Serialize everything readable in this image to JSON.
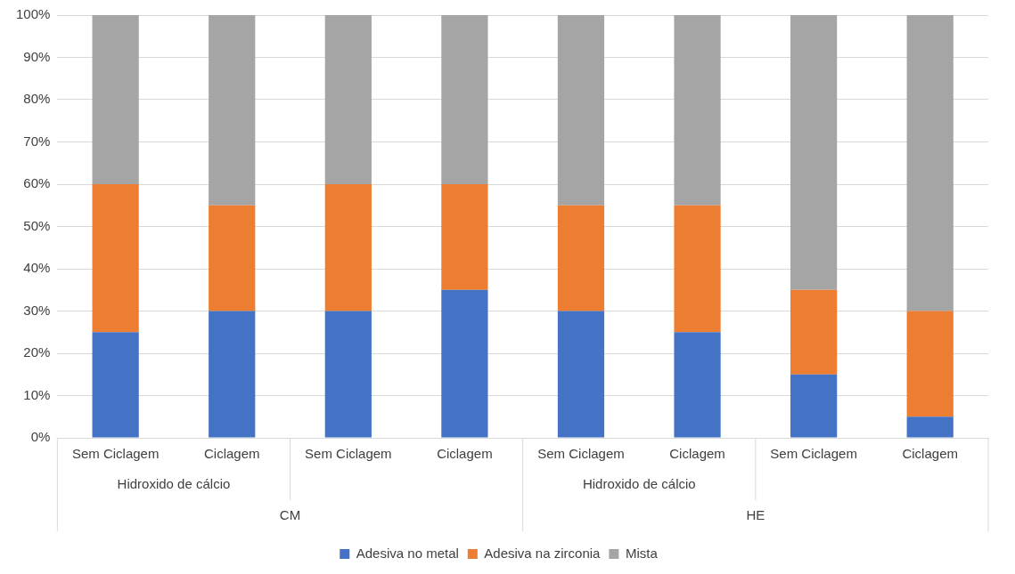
{
  "chart_data": {
    "type": "bar",
    "stacked": true,
    "categories": [
      "Sem Ciclagem",
      "Ciclagem",
      "Sem Ciclagem",
      "Ciclagem",
      "Sem Ciclagem",
      "Ciclagem",
      "Sem Ciclagem",
      "Ciclagem"
    ],
    "series": [
      {
        "name": "Adesiva no metal",
        "color": "#4472c4",
        "values": [
          25,
          30,
          30,
          35,
          30,
          25,
          15,
          5
        ]
      },
      {
        "name": "Adesiva na zirconia",
        "color": "#ed7d31",
        "values": [
          35,
          25,
          30,
          25,
          25,
          30,
          20,
          25
        ]
      },
      {
        "name": "Mista",
        "color": "#a5a5a5",
        "values": [
          40,
          45,
          40,
          40,
          45,
          45,
          65,
          70
        ]
      }
    ],
    "ylim": [
      0,
      100
    ],
    "yticks": [
      {
        "value": 0,
        "label": "0%"
      },
      {
        "value": 10,
        "label": "10%"
      },
      {
        "value": 20,
        "label": "20%"
      },
      {
        "value": 30,
        "label": "30%"
      },
      {
        "value": 40,
        "label": "40%"
      },
      {
        "value": 50,
        "label": "50%"
      },
      {
        "value": 60,
        "label": "60%"
      },
      {
        "value": 70,
        "label": "70%"
      },
      {
        "value": 80,
        "label": "80%"
      },
      {
        "value": 90,
        "label": "90%"
      },
      {
        "value": 100,
        "label": "100%"
      }
    ],
    "grid": "y",
    "legend": "bottom",
    "annotations": [
      "Hidroxido de cálcio",
      "Hidroxido de cálcio",
      "CM",
      "HE"
    ]
  }
}
